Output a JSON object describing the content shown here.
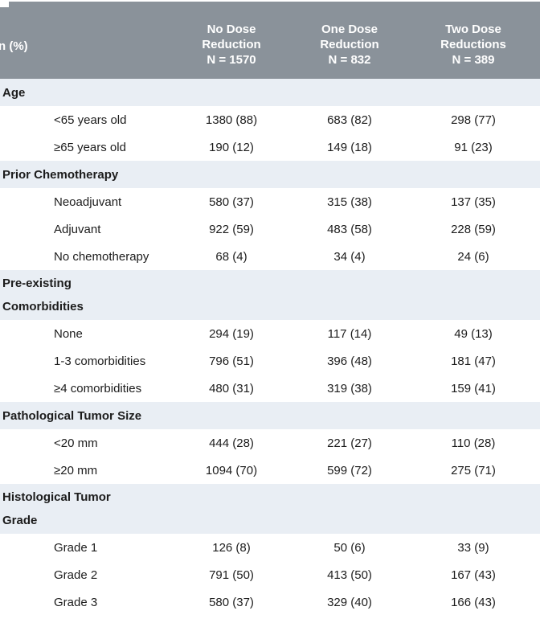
{
  "colors": {
    "header_bg": "#8a929a",
    "section_bg": "#e9eef4",
    "header_text": "#ffffff",
    "body_text": "#1c1c1c"
  },
  "table": {
    "corner_label": "n (%)",
    "columns": [
      {
        "lines": [
          "No Dose",
          "Reduction",
          "N = 1570"
        ]
      },
      {
        "lines": [
          "One Dose",
          "Reduction",
          "N = 832"
        ]
      },
      {
        "lines": [
          "Two Dose",
          "Reductions",
          "N = 389"
        ]
      }
    ],
    "sections": [
      {
        "title_lines": [
          "Age"
        ],
        "rows": [
          {
            "label": "<65 years old",
            "values": [
              "1380 (88)",
              "683 (82)",
              "298 (77)"
            ]
          },
          {
            "label": "≥65 years old",
            "values": [
              "190 (12)",
              "149 (18)",
              "91 (23)"
            ]
          }
        ]
      },
      {
        "title_lines": [
          "Prior Chemotherapy"
        ],
        "rows": [
          {
            "label": "Neoadjuvant",
            "values": [
              "580 (37)",
              "315 (38)",
              "137 (35)"
            ]
          },
          {
            "label": "Adjuvant",
            "values": [
              "922 (59)",
              "483 (58)",
              "228 (59)"
            ]
          },
          {
            "label": "No chemotherapy",
            "values": [
              "68 (4)",
              "34 (4)",
              "24 (6)"
            ]
          }
        ]
      },
      {
        "title_lines": [
          "Pre-existing",
          "Comorbidities"
        ],
        "rows": [
          {
            "label": "None",
            "values": [
              "294 (19)",
              "117 (14)",
              "49 (13)"
            ]
          },
          {
            "label": "1-3 comorbidities",
            "values": [
              "796 (51)",
              "396 (48)",
              "181 (47)"
            ]
          },
          {
            "label": "≥4 comorbidities",
            "values": [
              "480 (31)",
              "319 (38)",
              "159 (41)"
            ]
          }
        ]
      },
      {
        "title_lines": [
          "Pathological Tumor Size"
        ],
        "rows": [
          {
            "label": "<20 mm",
            "values": [
              "444 (28)",
              "221 (27)",
              "110 (28)"
            ]
          },
          {
            "label": "≥20 mm",
            "values": [
              "1094 (70)",
              "599 (72)",
              "275 (71)"
            ]
          }
        ]
      },
      {
        "title_lines": [
          "Histological Tumor",
          "Grade"
        ],
        "rows": [
          {
            "label": "Grade 1",
            "values": [
              "126 (8)",
              "50 (6)",
              "33 (9)"
            ]
          },
          {
            "label": "Grade 2",
            "values": [
              "791 (50)",
              "413 (50)",
              "167 (43)"
            ]
          },
          {
            "label": "Grade 3",
            "values": [
              "580 (37)",
              "329 (40)",
              "166 (43)"
            ]
          }
        ]
      }
    ]
  }
}
